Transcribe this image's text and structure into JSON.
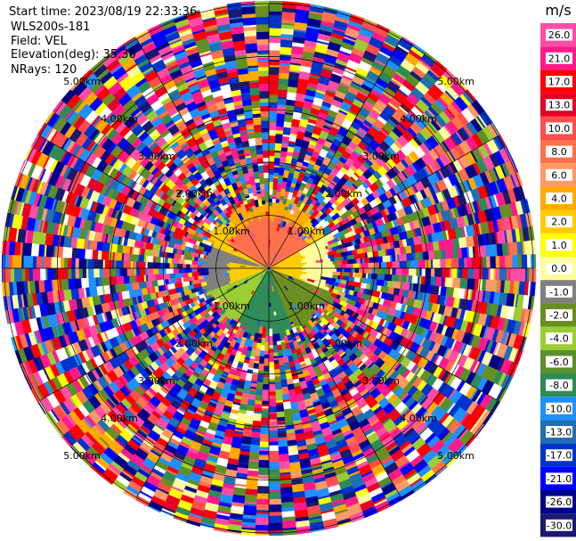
{
  "header": {
    "start_time": "Start time: 2023/08/19 22:33:36",
    "instrument": "WLS200s-181",
    "field": "Field: VEL",
    "elevation": "Elevation(deg): 35.30",
    "nrays": "NRays: 120"
  },
  "chart_data": {
    "type": "heatmap",
    "title": "",
    "projection": "polar-ppi",
    "field": "VEL",
    "units": "m/s",
    "nrays": 120,
    "elevation_deg": 35.3,
    "range_rings_km": [
      1.0,
      2.0,
      3.0,
      4.0,
      5.0
    ],
    "ring_labels": [
      "1.00km",
      "2.00km",
      "3.00km",
      "4.00km",
      "5.00km"
    ],
    "spoke_angles_deg": [
      0,
      30,
      60,
      90,
      120,
      150,
      180,
      210,
      240,
      270,
      300,
      330
    ],
    "colorbar": {
      "label": "m/s",
      "ticks": [
        "26.0",
        "21.0",
        "17.0",
        "13.0",
        "10.0",
        "8.0",
        "6.0",
        "4.0",
        "2.0",
        "1.0",
        "0.0",
        "-1.0",
        "-2.0",
        "-4.0",
        "-6.0",
        "-8.0",
        "-10.0",
        "-13.0",
        "-17.0",
        "-21.0",
        "-26.0",
        "-30.0"
      ],
      "colors": [
        "#ff4da6",
        "#ff1a8c",
        "#ff0000",
        "#e60026",
        "#ff4d4d",
        "#ff704d",
        "#ff9966",
        "#ffaa00",
        "#ffcc00",
        "#ffff00",
        "#ffff99",
        "#808080",
        "#6b8e23",
        "#9acd32",
        "#5a8f29",
        "#2e8b57",
        "#1e90ff",
        "#1f6fb2",
        "#0033cc",
        "#0000ff",
        "#00008b",
        "#191970"
      ]
    },
    "near_field_summary": [
      {
        "sector": "north",
        "range_km": [
          0,
          1.2
        ],
        "velocity_ms": 8.0
      },
      {
        "sector": "north-west",
        "range_km": [
          0,
          1.2
        ],
        "velocity_ms": 2.0
      },
      {
        "sector": "north-east",
        "range_km": [
          0,
          1.2
        ],
        "velocity_ms": 2.0
      },
      {
        "sector": "east",
        "range_km": [
          0,
          1.2
        ],
        "velocity_ms": 0.0
      },
      {
        "sector": "south",
        "range_km": [
          0,
          1.2
        ],
        "velocity_ms": -8.0
      },
      {
        "sector": "south-west",
        "range_km": [
          0,
          1.2
        ],
        "velocity_ms": -4.0
      },
      {
        "sector": "south-east",
        "range_km": [
          0,
          1.2
        ],
        "velocity_ms": -2.0
      }
    ]
  }
}
